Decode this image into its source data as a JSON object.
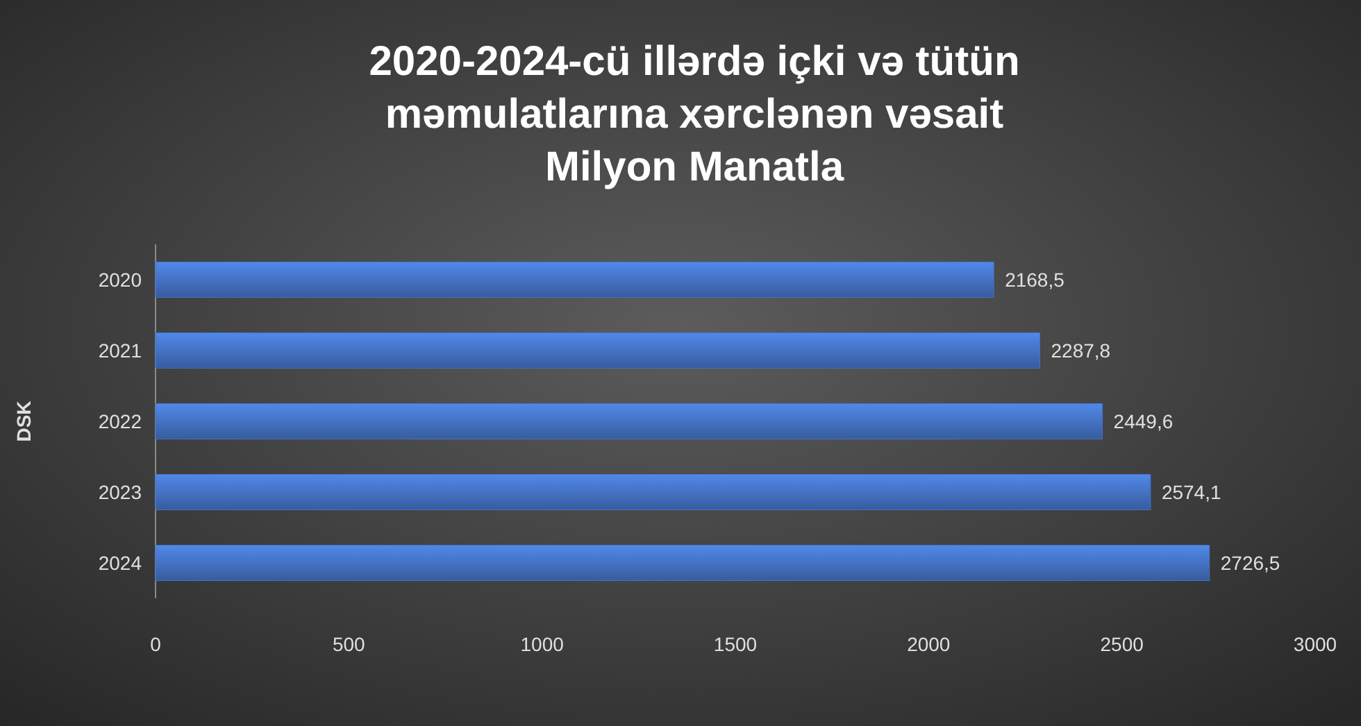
{
  "chart_data": {
    "type": "bar",
    "orientation": "horizontal",
    "title": "2020-2024-cü illərdə içki və tütün\nməmulatlarına xərclənən vəsait\nMilyon Manatla",
    "ylabel": "DSK",
    "categories": [
      "2020",
      "2021",
      "2022",
      "2023",
      "2024"
    ],
    "values": [
      2168.5,
      2287.8,
      2449.6,
      2574.1,
      2726.5
    ],
    "value_labels": [
      "2168,5",
      "2287,8",
      "2449,6",
      "2574,1",
      "2726,5"
    ],
    "color": "#4472c4",
    "xlim": [
      0,
      3000
    ],
    "xticks": [
      0,
      500,
      1000,
      1500,
      2000,
      2500,
      3000
    ],
    "grid": false
  }
}
